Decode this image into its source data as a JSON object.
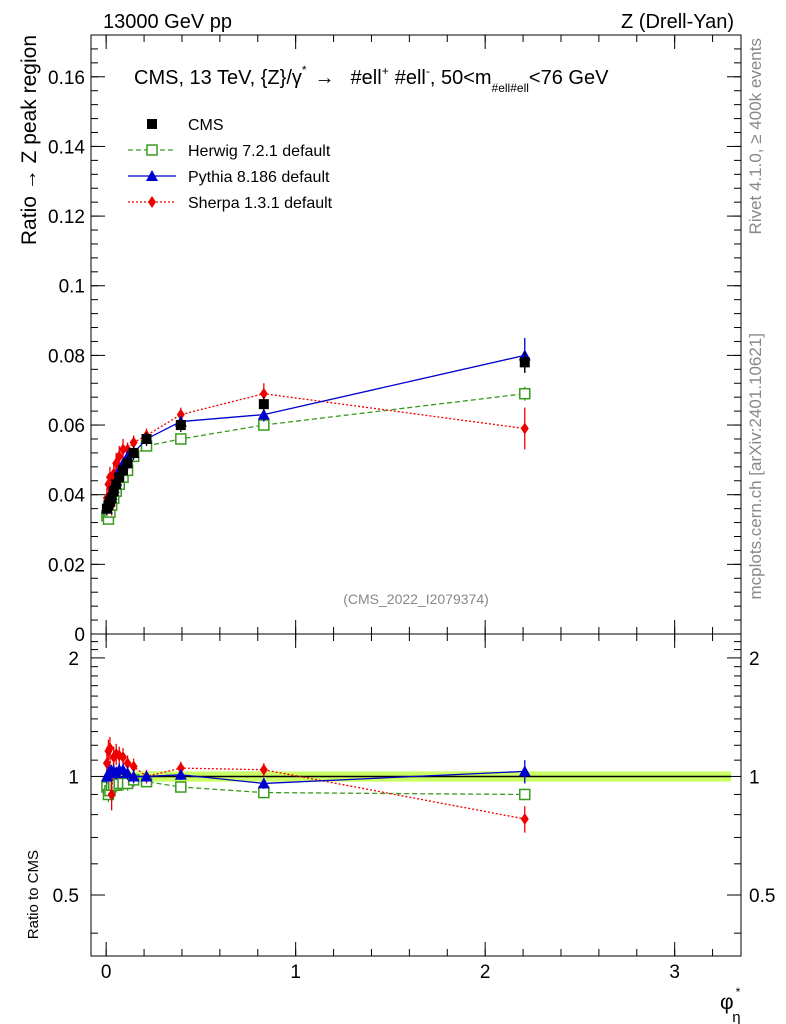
{
  "header": {
    "left": "13000 GeV pp",
    "right": "Z (Drell-Yan)"
  },
  "side": {
    "rivet": "Rivet 4.1.0, ≥ 400k events",
    "mcplots": "mcplots.cern.ch [arXiv:2401.10621]"
  },
  "plot_title": "CMS, 13 TeV, {Z}/γ* → #ell⁺ #ell⁻, 50<m_#ell#ell<76 GeV",
  "plot_title_parts": {
    "main": "CMS, 13 TeV, {Z}/γ",
    "star": "*",
    "arrow": "→",
    "ell1": "#ell",
    "plus": "+",
    "ell2": "#ell",
    "minus": "-",
    "mid": ", 50<m",
    "sub": "#ell#ell",
    "end": "<76 GeV"
  },
  "watermark": "(CMS_2022_I2079374)",
  "colors": {
    "cms": "#000000",
    "herwig": "#3a9a1e",
    "pythia": "#0000cc",
    "sherpa": "#ee0000",
    "band": "#ccff66"
  },
  "chart_data": [
    {
      "type": "scatter",
      "panel": "main",
      "ylabel": "Ratio → Z peak region",
      "xlim": [
        -0.08,
        3.35
      ],
      "ylim": [
        0,
        0.172
      ],
      "y_ticks": [
        {
          "value": 0,
          "label": "0"
        },
        {
          "value": 0.02,
          "label": "0.02"
        },
        {
          "value": 0.04,
          "label": "0.04"
        },
        {
          "value": 0.06,
          "label": "0.06"
        },
        {
          "value": 0.08,
          "label": "0.08"
        },
        {
          "value": 0.1,
          "label": "0.1"
        },
        {
          "value": 0.12,
          "label": "0.12"
        },
        {
          "value": 0.14,
          "label": "0.14"
        },
        {
          "value": 0.16,
          "label": "0.16"
        }
      ],
      "legend": [
        {
          "key": "cms",
          "label": "CMS"
        },
        {
          "key": "herwig",
          "label": "Herwig 7.2.1 default"
        },
        {
          "key": "pythia",
          "label": "Pythia 8.186 default"
        },
        {
          "key": "sherpa",
          "label": "Sherpa 1.3.1 default"
        }
      ],
      "series": [
        {
          "key": "cms",
          "name": "CMS",
          "x": [
            0.004,
            0.012,
            0.02,
            0.029,
            0.04,
            0.053,
            0.069,
            0.089,
            0.113,
            0.145,
            0.213,
            0.394,
            0.832,
            2.209
          ],
          "y": [
            0.036,
            0.037,
            0.038,
            0.039,
            0.041,
            0.043,
            0.045,
            0.047,
            0.049,
            0.052,
            0.056,
            0.06,
            0.066,
            0.078
          ],
          "err": [
            0.002,
            0.002,
            0.002,
            0.002,
            0.002,
            0.002,
            0.002,
            0.002,
            0.002,
            0.002,
            0.002,
            0.002,
            0.002,
            0.003
          ]
        },
        {
          "key": "herwig",
          "name": "Herwig 7.2.1 default",
          "x": [
            0.004,
            0.012,
            0.02,
            0.029,
            0.04,
            0.053,
            0.069,
            0.089,
            0.113,
            0.145,
            0.213,
            0.394,
            0.832,
            2.209
          ],
          "y": [
            0.034,
            0.033,
            0.035,
            0.037,
            0.039,
            0.041,
            0.043,
            0.045,
            0.047,
            0.051,
            0.054,
            0.056,
            0.06,
            0.069
          ],
          "err": [
            0.0015,
            0.0015,
            0.0015,
            0.0015,
            0.0015,
            0.0015,
            0.0015,
            0.0015,
            0.0015,
            0.0015,
            0.0015,
            0.0015,
            0.0015,
            0.002
          ]
        },
        {
          "key": "pythia",
          "name": "Pythia 8.186 default",
          "x": [
            0.004,
            0.012,
            0.02,
            0.029,
            0.04,
            0.053,
            0.069,
            0.089,
            0.113,
            0.145,
            0.213,
            0.394,
            0.832,
            2.209
          ],
          "y": [
            0.036,
            0.038,
            0.039,
            0.04,
            0.042,
            0.044,
            0.047,
            0.049,
            0.051,
            0.052,
            0.056,
            0.061,
            0.063,
            0.08
          ],
          "err": [
            0.0015,
            0.0015,
            0.0015,
            0.0015,
            0.0015,
            0.0015,
            0.0015,
            0.0015,
            0.0015,
            0.0015,
            0.0015,
            0.0015,
            0.002,
            0.005
          ]
        },
        {
          "key": "sherpa",
          "name": "Sherpa 1.3.1 default",
          "x": [
            0.004,
            0.012,
            0.02,
            0.029,
            0.04,
            0.053,
            0.069,
            0.089,
            0.113,
            0.145,
            0.213,
            0.394,
            0.832,
            2.209
          ],
          "y": [
            0.039,
            0.043,
            0.045,
            0.037,
            0.046,
            0.049,
            0.051,
            0.053,
            0.053,
            0.055,
            0.057,
            0.063,
            0.069,
            0.059
          ],
          "err": [
            0.003,
            0.003,
            0.003,
            0.003,
            0.003,
            0.003,
            0.003,
            0.003,
            0.002,
            0.002,
            0.002,
            0.002,
            0.003,
            0.006
          ]
        }
      ]
    },
    {
      "type": "scatter",
      "panel": "ratio",
      "ylabel": "Ratio to CMS",
      "xlabel": "φ*η",
      "xlabel_parts": {
        "base": "φ",
        "sup": "*",
        "sub": "η"
      },
      "xlim": [
        -0.08,
        3.35
      ],
      "ylim": [
        0.35,
        2.3
      ],
      "log_y": true,
      "x_ticks": [
        {
          "value": 0,
          "label": "0"
        },
        {
          "value": 1,
          "label": "1"
        },
        {
          "value": 2,
          "label": "2"
        },
        {
          "value": 3,
          "label": "3"
        }
      ],
      "y_ticks": [
        {
          "value": 0.5,
          "label": "0.5"
        },
        {
          "value": 1,
          "label": "1"
        },
        {
          "value": 2,
          "label": "2"
        }
      ],
      "reference_band": {
        "y": 1,
        "half_width": 0.03
      },
      "series": [
        {
          "key": "herwig",
          "name": "Herwig 7.2.1 default",
          "x": [
            0.004,
            0.012,
            0.02,
            0.029,
            0.04,
            0.053,
            0.069,
            0.089,
            0.113,
            0.145,
            0.213,
            0.394,
            0.832,
            2.209
          ],
          "y": [
            0.94,
            0.9,
            0.92,
            0.95,
            0.95,
            0.95,
            0.96,
            0.96,
            0.96,
            0.98,
            0.97,
            0.94,
            0.91,
            0.9
          ],
          "err": [
            0.04,
            0.04,
            0.04,
            0.04,
            0.04,
            0.04,
            0.04,
            0.04,
            0.04,
            0.04,
            0.03,
            0.03,
            0.03,
            0.03
          ]
        },
        {
          "key": "pythia",
          "name": "Pythia 8.186 default",
          "x": [
            0.004,
            0.012,
            0.02,
            0.029,
            0.04,
            0.053,
            0.069,
            0.089,
            0.113,
            0.145,
            0.213,
            0.394,
            0.832,
            2.209
          ],
          "y": [
            1.0,
            1.02,
            1.03,
            1.03,
            1.03,
            1.02,
            1.04,
            1.04,
            1.02,
            1.0,
            1.0,
            1.01,
            0.96,
            1.03
          ],
          "err": [
            0.04,
            0.04,
            0.04,
            0.04,
            0.04,
            0.04,
            0.04,
            0.04,
            0.04,
            0.04,
            0.03,
            0.03,
            0.03,
            0.07
          ]
        },
        {
          "key": "sherpa",
          "name": "Sherpa 1.3.1 default",
          "x": [
            0.004,
            0.012,
            0.02,
            0.029,
            0.04,
            0.053,
            0.069,
            0.089,
            0.113,
            0.145,
            0.213,
            0.394,
            0.832,
            2.209
          ],
          "y": [
            1.08,
            1.16,
            1.18,
            0.9,
            1.12,
            1.14,
            1.13,
            1.12,
            1.08,
            1.06,
            1.0,
            1.05,
            1.04,
            0.78
          ],
          "err": [
            0.08,
            0.08,
            0.08,
            0.08,
            0.07,
            0.07,
            0.06,
            0.06,
            0.05,
            0.05,
            0.04,
            0.04,
            0.04,
            0.06
          ]
        }
      ]
    }
  ]
}
